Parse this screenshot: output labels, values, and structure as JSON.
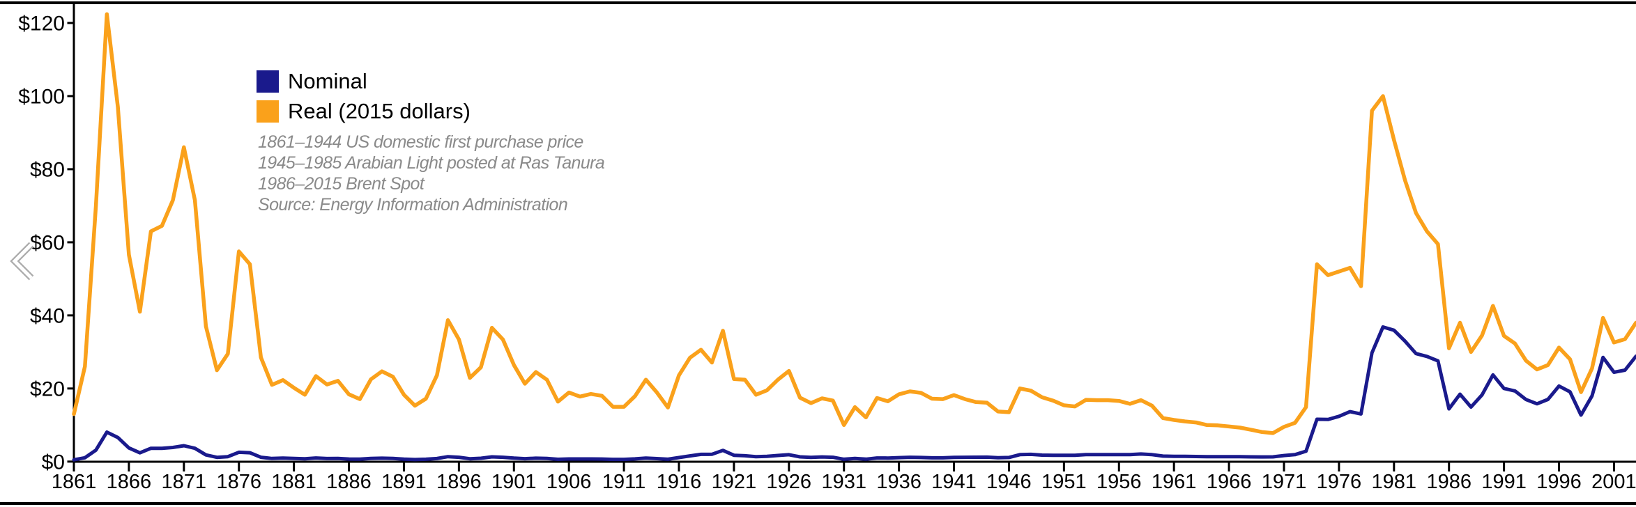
{
  "chart": {
    "legend": [
      {
        "label": "Nominal",
        "color": "#1a1a8c"
      },
      {
        "label": "Real (2015 dollars)",
        "color": "#faa11b"
      }
    ],
    "notes": [
      "1861–1944 US domestic first purchase price",
      "1945–1985 Arabian Light posted at Ras Tanura",
      "1986–2015 Brent Spot",
      "Source: Energy Information Administration"
    ],
    "colors": {
      "axis": "#000000",
      "nominal": "#1a1a8c",
      "real": "#faa11b",
      "notes_text": "#8a8a8a",
      "chevron": "#ababab"
    }
  },
  "icons": {
    "chevron_left": "chevron-left"
  },
  "chart_data": {
    "type": "line",
    "title": "",
    "xlabel": "",
    "ylabel": "",
    "grid": false,
    "legend_position": "upper-left-inside",
    "xlim": [
      1861,
      2003
    ],
    "ylim": [
      0,
      125
    ],
    "y_tick_values": [
      0,
      20,
      40,
      60,
      80,
      100,
      120
    ],
    "y_tick_labels": [
      "$0",
      "$20",
      "$40",
      "$60",
      "$80",
      "$100",
      "$120"
    ],
    "x_tick_values": [
      1861,
      1866,
      1871,
      1876,
      1881,
      1886,
      1891,
      1896,
      1901,
      1906,
      1911,
      1916,
      1921,
      1926,
      1931,
      1936,
      1941,
      1946,
      1951,
      1956,
      1961,
      1966,
      1971,
      1976,
      1981,
      1986,
      1991,
      1996,
      2001
    ],
    "x": [
      1861,
      1862,
      1863,
      1864,
      1865,
      1866,
      1867,
      1868,
      1869,
      1870,
      1871,
      1872,
      1873,
      1874,
      1875,
      1876,
      1877,
      1878,
      1879,
      1880,
      1881,
      1882,
      1883,
      1884,
      1885,
      1886,
      1887,
      1888,
      1889,
      1890,
      1891,
      1892,
      1893,
      1894,
      1895,
      1896,
      1897,
      1898,
      1899,
      1900,
      1901,
      1902,
      1903,
      1904,
      1905,
      1906,
      1907,
      1908,
      1909,
      1910,
      1911,
      1912,
      1913,
      1914,
      1915,
      1916,
      1917,
      1918,
      1919,
      1920,
      1921,
      1922,
      1923,
      1924,
      1925,
      1926,
      1927,
      1928,
      1929,
      1930,
      1931,
      1932,
      1933,
      1934,
      1935,
      1936,
      1937,
      1938,
      1939,
      1940,
      1941,
      1942,
      1943,
      1944,
      1945,
      1946,
      1947,
      1948,
      1949,
      1950,
      1951,
      1952,
      1953,
      1954,
      1955,
      1956,
      1957,
      1958,
      1959,
      1960,
      1961,
      1962,
      1963,
      1964,
      1965,
      1966,
      1967,
      1968,
      1969,
      1970,
      1971,
      1972,
      1973,
      1974,
      1975,
      1976,
      1977,
      1978,
      1979,
      1980,
      1981,
      1982,
      1983,
      1984,
      1985,
      1986,
      1987,
      1988,
      1989,
      1990,
      1991,
      1992,
      1993,
      1994,
      1995,
      1996,
      1997,
      1998,
      1999,
      2000,
      2001,
      2002,
      2003
    ],
    "series": [
      {
        "name": "Nominal",
        "color": "#1a1a8c",
        "values": [
          0.49,
          1.05,
          3.15,
          8.06,
          6.59,
          3.74,
          2.41,
          3.63,
          3.64,
          3.86,
          4.34,
          3.64,
          1.83,
          1.17,
          1.35,
          2.56,
          2.42,
          1.19,
          0.86,
          0.95,
          0.86,
          0.78,
          1.0,
          0.84,
          0.88,
          0.71,
          0.67,
          0.88,
          0.94,
          0.87,
          0.67,
          0.56,
          0.64,
          0.84,
          1.36,
          1.18,
          0.79,
          0.91,
          1.29,
          1.19,
          0.96,
          0.8,
          0.94,
          0.86,
          0.62,
          0.73,
          0.72,
          0.72,
          0.7,
          0.61,
          0.61,
          0.74,
          0.95,
          0.81,
          0.64,
          1.1,
          1.56,
          1.98,
          2.01,
          3.07,
          1.73,
          1.61,
          1.34,
          1.43,
          1.68,
          1.88,
          1.3,
          1.17,
          1.27,
          1.19,
          0.65,
          0.87,
          0.67,
          1.0,
          0.97,
          1.09,
          1.18,
          1.13,
          1.02,
          1.02,
          1.14,
          1.19,
          1.2,
          1.21,
          1.05,
          1.12,
          1.9,
          1.99,
          1.78,
          1.71,
          1.71,
          1.71,
          1.93,
          1.93,
          1.93,
          1.93,
          1.9,
          2.08,
          1.9,
          1.5,
          1.45,
          1.42,
          1.4,
          1.33,
          1.33,
          1.33,
          1.33,
          1.3,
          1.28,
          1.3,
          1.65,
          1.9,
          2.83,
          11.58,
          11.53,
          12.38,
          13.66,
          13.03,
          29.75,
          36.83,
          35.93,
          32.97,
          29.55,
          28.78,
          27.56,
          14.43,
          18.44,
          14.92,
          18.23,
          23.73,
          20.0,
          19.32,
          16.97,
          15.82,
          17.02,
          20.67,
          19.09,
          12.72,
          17.97,
          28.5,
          24.44,
          25.02,
          28.83
        ]
      },
      {
        "name": "Real (2015 dollars)",
        "color": "#faa11b",
        "values": [
          13.0,
          26.0,
          70.0,
          122.4,
          97.0,
          56.6,
          41.0,
          63.0,
          64.5,
          71.5,
          86.0,
          71.5,
          37.0,
          25.0,
          29.5,
          57.5,
          54.0,
          28.5,
          21.0,
          22.3,
          20.2,
          18.3,
          23.4,
          21.1,
          22.1,
          18.4,
          17.1,
          22.5,
          24.7,
          23.2,
          18.3,
          15.3,
          17.2,
          23.6,
          38.7,
          33.4,
          22.9,
          25.8,
          36.6,
          33.4,
          26.4,
          21.3,
          24.5,
          22.4,
          16.4,
          18.9,
          17.8,
          18.5,
          18.0,
          15.0,
          15.0,
          17.9,
          22.4,
          18.9,
          14.8,
          23.6,
          28.4,
          30.6,
          27.1,
          35.8,
          22.6,
          22.4,
          18.3,
          19.5,
          22.4,
          24.8,
          17.5,
          16.0,
          17.3,
          16.7,
          10.0,
          14.9,
          12.1,
          17.4,
          16.5,
          18.4,
          19.2,
          18.8,
          17.2,
          17.1,
          18.2,
          17.1,
          16.3,
          16.1,
          13.7,
          13.5,
          20.0,
          19.4,
          17.6,
          16.7,
          15.4,
          15.1,
          16.9,
          16.8,
          16.8,
          16.6,
          15.8,
          16.8,
          15.3,
          11.9,
          11.4,
          11.0,
          10.7,
          10.0,
          9.9,
          9.6,
          9.3,
          8.7,
          8.1,
          7.8,
          9.5,
          10.6,
          14.9,
          54.0,
          51.0,
          52.0,
          53.0,
          48.0,
          96.0,
          100.0,
          88.0,
          77.0,
          68.0,
          63.0,
          59.5,
          31.0,
          38.0,
          30.0,
          34.5,
          42.6,
          34.4,
          32.3,
          27.6,
          25.2,
          26.4,
          31.2,
          28.0,
          19.0,
          25.5,
          39.3,
          32.6,
          33.5,
          38.0
        ]
      }
    ]
  }
}
